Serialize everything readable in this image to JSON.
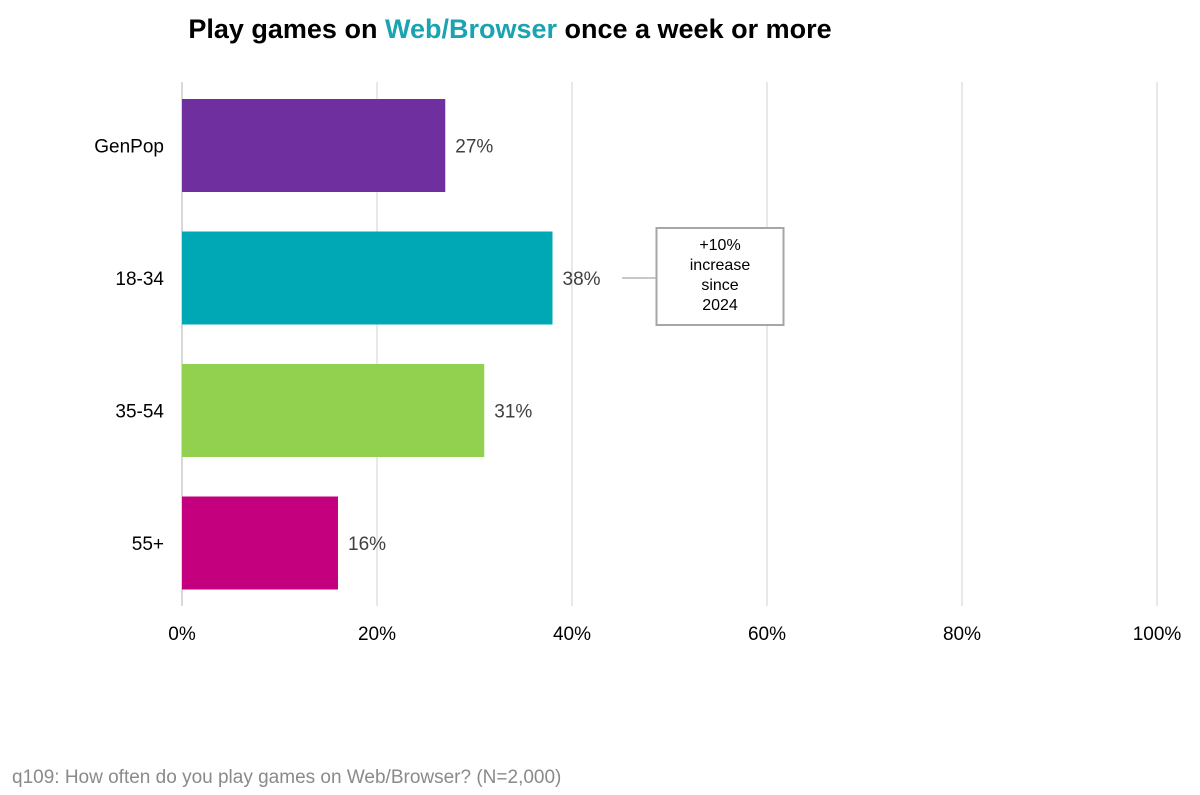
{
  "title": {
    "prefix": "Play games on ",
    "highlight": "Web/Browser",
    "suffix": " once a week or more",
    "highlight_color": "#1aa3b0"
  },
  "chart_data": {
    "type": "bar",
    "orientation": "horizontal",
    "categories": [
      "GenPop",
      "18-34",
      "35-54",
      "55+"
    ],
    "values": [
      27,
      38,
      31,
      16
    ],
    "value_labels": [
      "27%",
      "38%",
      "31%",
      "16%"
    ],
    "colors": [
      "#6f2f9f",
      "#00a8b5",
      "#92d050",
      "#c5007f"
    ],
    "xlim": [
      0,
      100
    ],
    "xticks": [
      0,
      20,
      40,
      60,
      80,
      100
    ],
    "xtick_labels": [
      "0%",
      "20%",
      "40%",
      "60%",
      "80%",
      "100%"
    ],
    "grid": "vertical",
    "annotation": {
      "category": "18-34",
      "lines": [
        "+10%",
        "increase",
        "since",
        "2024"
      ]
    }
  },
  "footnote": "q109: How often do you play games on Web/Browser? (N=2,000)"
}
